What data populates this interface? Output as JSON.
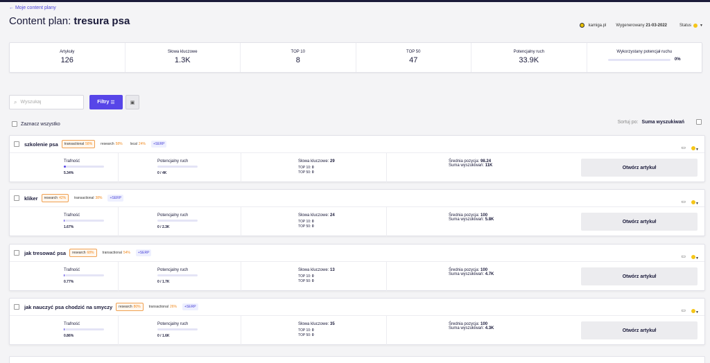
{
  "nav": {
    "back_label": "← Moje content plany"
  },
  "header": {
    "title_prefix": "Content plan:",
    "title_name": "tresura psa",
    "domain": "kamiga.pl",
    "generated_label": "Wygenerowany",
    "generated_date": "21-03-2022",
    "status_label": "Status",
    "status_color": "#f5c518"
  },
  "stats": [
    {
      "label": "Artykuły",
      "value": "126"
    },
    {
      "label": "Słowa kluczowe",
      "value": "1.3K"
    },
    {
      "label": "TOP 10",
      "value": "8"
    },
    {
      "label": "TOP 50",
      "value": "47"
    },
    {
      "label": "Potencjalny ruch",
      "value": "33.9K"
    }
  ],
  "potential": {
    "label": "Wykorzystany potencjał ruchu",
    "value": "0%",
    "fraction": 0
  },
  "toolbar": {
    "search_placeholder": "Wyszukaj",
    "filter_label": "Filtry",
    "select_all_label": "Zaznacz wszystko",
    "sort_label": "Sortuj po:",
    "sort_value": "Suma wyszukiwań"
  },
  "labels": {
    "fit": "Trafność",
    "traffic": "Potencjalny ruch",
    "keywords": "Słowa kluczowe:",
    "top10": "TOP 10:",
    "top50": "TOP 50:",
    "avg_pos": "Średnia pozycja:",
    "search_sum": "Suma wyszukiwań:",
    "open": "Otwórz artykuł",
    "serp": "+SERP"
  },
  "articles": [
    {
      "name": "szkolenie psa",
      "tags": [
        {
          "name": "transactional",
          "pct": "58%",
          "highlight": true
        },
        {
          "name": "research",
          "pct": "58%",
          "highlight": false
        },
        {
          "name": "local",
          "pct": "24%",
          "highlight": false
        }
      ],
      "fit": "5.34%",
      "fit_fraction": 0.0534,
      "traffic": "0 / 4K",
      "keywords": "29",
      "top10": "0",
      "top50": "0",
      "avg_pos": "98.24",
      "search_sum": "11K"
    },
    {
      "name": "kliker",
      "tags": [
        {
          "name": "research",
          "pct": "42%",
          "highlight": true
        },
        {
          "name": "transactional",
          "pct": "38%",
          "highlight": false
        }
      ],
      "fit": "1.67%",
      "fit_fraction": 0.0167,
      "traffic": "0 / 2.3K",
      "keywords": "24",
      "top10": "0",
      "top50": "0",
      "avg_pos": "100",
      "search_sum": "5.8K"
    },
    {
      "name": "jak tresować psa",
      "tags": [
        {
          "name": "research",
          "pct": "68%",
          "highlight": true
        },
        {
          "name": "transactional",
          "pct": "54%",
          "highlight": false
        }
      ],
      "fit": "0.77%",
      "fit_fraction": 0.0077,
      "traffic": "0 / 1.7K",
      "keywords": "13",
      "top10": "0",
      "top50": "0",
      "avg_pos": "100",
      "search_sum": "4.7K"
    },
    {
      "name": "jak nauczyć psa chodzić na smyczy",
      "tags": [
        {
          "name": "research",
          "pct": "80%",
          "highlight": true
        },
        {
          "name": "transactional",
          "pct": "26%",
          "highlight": false
        }
      ],
      "fit": "0.86%",
      "fit_fraction": 0.0086,
      "traffic": "0 / 1.6K",
      "keywords": "35",
      "top10": "0",
      "top50": "0",
      "avg_pos": "100",
      "search_sum": "4.3K"
    }
  ]
}
